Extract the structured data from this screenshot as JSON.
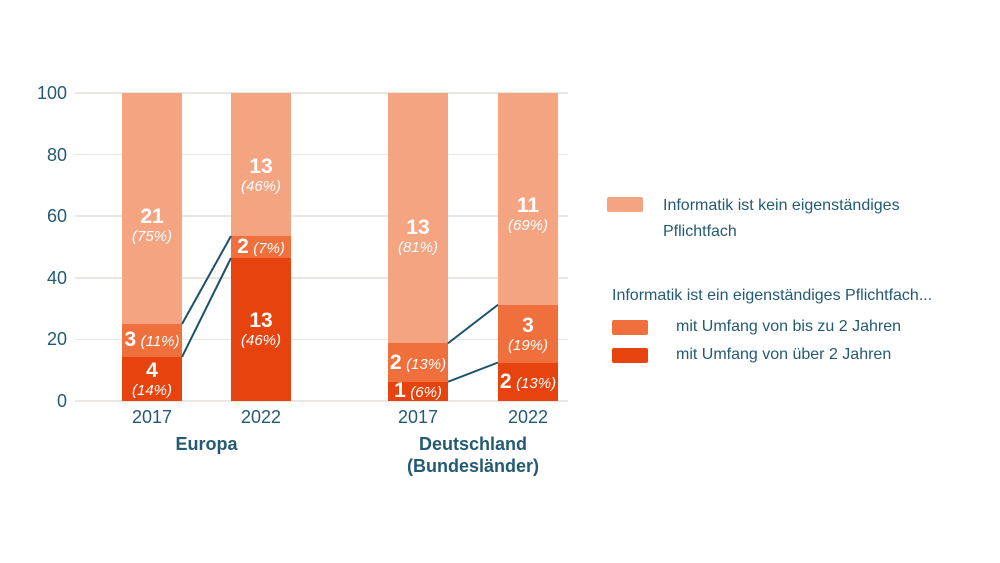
{
  "colors": {
    "background": "#FFFFFF",
    "text": "#235B73",
    "grid": "#EAE6E3",
    "connector": "#1C5269",
    "bar_label_text": "#FFFFFF"
  },
  "legend": {
    "heading": "Informatik ist ein eigenständiges Pflichtfach..."
  },
  "chart_data": {
    "type": "bar",
    "stacked": true,
    "grid": true,
    "legend_position": "right",
    "xlabel": "",
    "ylabel": "",
    "ylim": [
      0,
      100
    ],
    "yticks": [
      0,
      20,
      40,
      60,
      80,
      100
    ],
    "series": [
      {
        "key": "over2",
        "label": "mit Umfang von über 2 Jahren",
        "color": "#E6430E"
      },
      {
        "key": "upto2",
        "label": "mit Umfang von bis zu 2 Jahren",
        "color": "#EF6F3D"
      },
      {
        "key": "none",
        "label": "Informatik ist kein eigenständiges Pflichtfach",
        "color": "#F5A482"
      }
    ],
    "groups": [
      {
        "id": "europa",
        "label_lines": [
          "Europa"
        ],
        "bars": [
          {
            "year": "2017",
            "segments": [
              {
                "key": "over2",
                "count": "4",
                "pct": "(14%)",
                "value": 14.29,
                "two_line": true
              },
              {
                "key": "upto2",
                "count": "3",
                "pct": "(11%)",
                "value": 10.71,
                "two_line": false
              },
              {
                "key": "none",
                "count": "21",
                "pct": "(75%)",
                "value": 75.0,
                "two_line": true
              }
            ]
          },
          {
            "year": "2022",
            "segments": [
              {
                "key": "over2",
                "count": "13",
                "pct": "(46%)",
                "value": 46.43,
                "two_line": true
              },
              {
                "key": "upto2",
                "count": "2",
                "pct": "(7%)",
                "value": 7.14,
                "two_line": false
              },
              {
                "key": "none",
                "count": "13",
                "pct": "(46%)",
                "value": 46.43,
                "two_line": true
              }
            ]
          }
        ]
      },
      {
        "id": "deutschland",
        "label_lines": [
          "Deutschland",
          "(Bundesländer)"
        ],
        "bars": [
          {
            "year": "2017",
            "segments": [
              {
                "key": "over2",
                "count": "1",
                "pct": "(6%)",
                "value": 6.25,
                "two_line": false
              },
              {
                "key": "upto2",
                "count": "2",
                "pct": "(13%)",
                "value": 12.5,
                "two_line": false
              },
              {
                "key": "none",
                "count": "13",
                "pct": "(81%)",
                "value": 81.25,
                "two_line": true
              }
            ]
          },
          {
            "year": "2022",
            "segments": [
              {
                "key": "over2",
                "count": "2",
                "pct": "(13%)",
                "value": 12.5,
                "two_line": false
              },
              {
                "key": "upto2",
                "count": "3",
                "pct": "(19%)",
                "value": 18.75,
                "two_line": true
              },
              {
                "key": "none",
                "count": "11",
                "pct": "(69%)",
                "value": 68.75,
                "two_line": true
              }
            ]
          }
        ]
      }
    ]
  }
}
